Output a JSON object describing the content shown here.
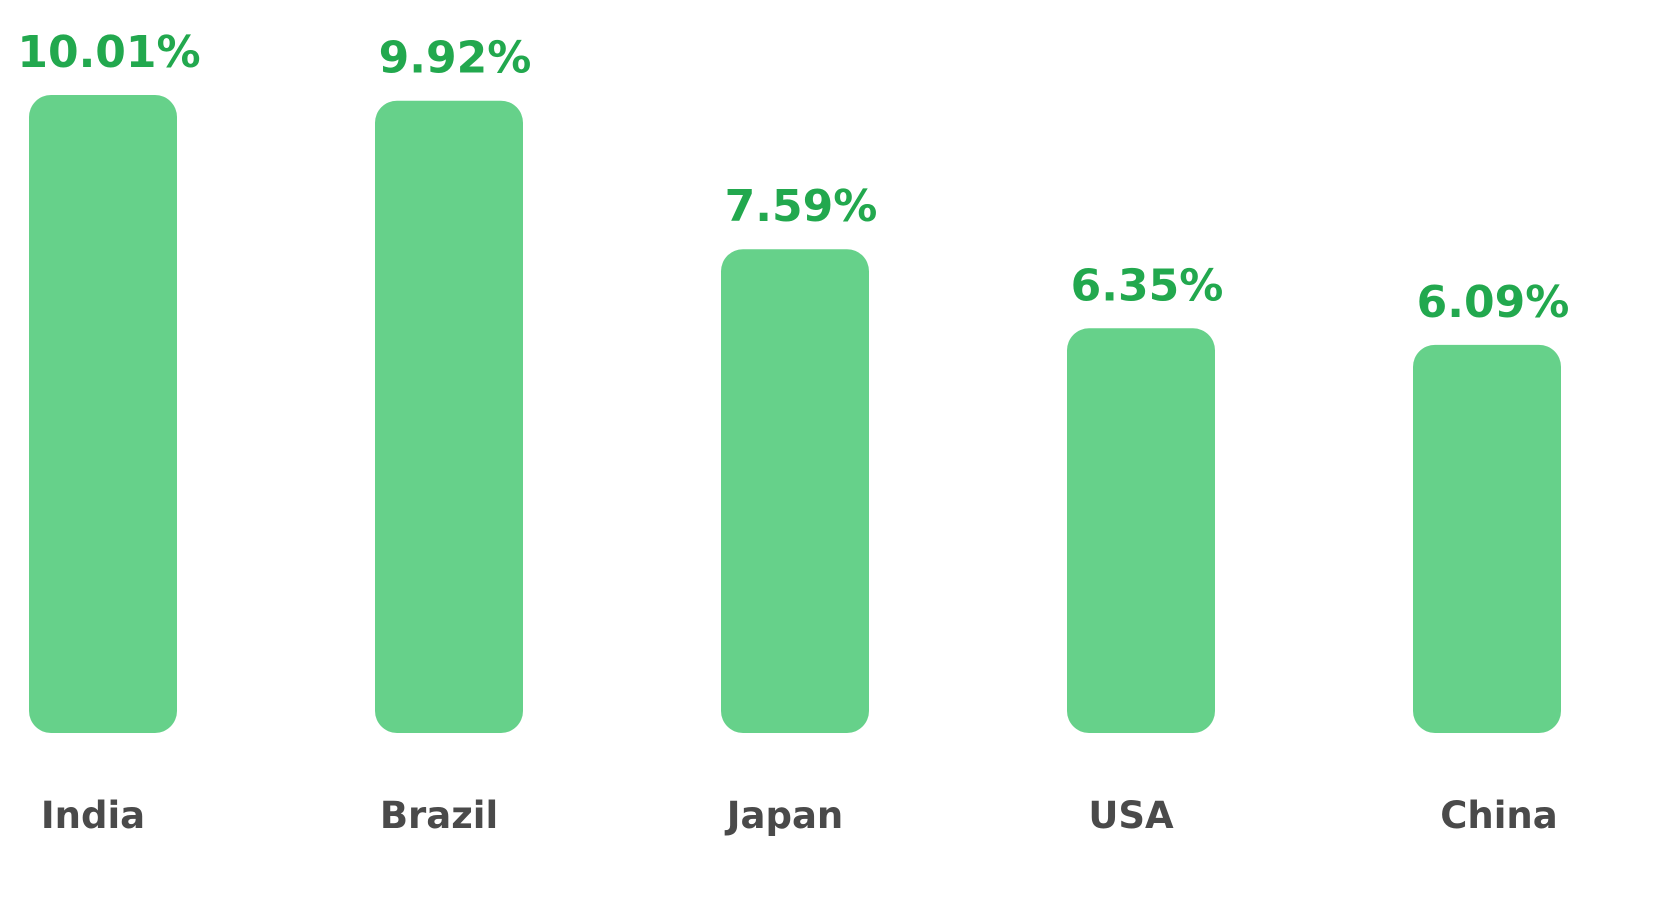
{
  "chart_data": {
    "type": "bar",
    "categories": [
      "India",
      "Brazil",
      "Japan",
      "USA",
      "China"
    ],
    "values": [
      10.01,
      9.92,
      7.59,
      6.35,
      6.09
    ],
    "value_labels": [
      "10.01%",
      "9.92%",
      "7.59%",
      "6.35%",
      "6.09%"
    ],
    "color": "#66d18a"
  }
}
